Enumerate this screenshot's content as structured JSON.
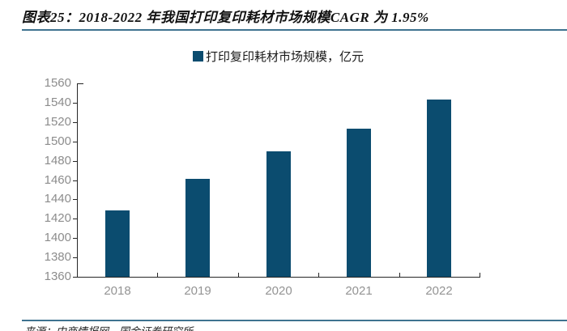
{
  "header": {
    "title": "图表25：2018-2022 年我国打印复印耗材市场规模CAGR 为 1.95%"
  },
  "legend": {
    "label": "打印复印耗材市场规模，亿元"
  },
  "footer": {
    "source": "来源：中商情报网，国金证券研究所"
  },
  "colors": {
    "bar": "#0b4c6f",
    "rule": "#3e7390",
    "axis": "#262626",
    "ytick_label": "#8c8c8c",
    "xtick_label": "#949494"
  },
  "chart_data": {
    "type": "bar",
    "title": "图表25：2018-2022 年我国打印复印耗材市场规模CAGR 为 1.95%",
    "legend": "打印复印耗材市场规模，亿元",
    "unit": "亿元",
    "categories": [
      "2018",
      "2019",
      "2020",
      "2021",
      "2022"
    ],
    "values": [
      1429,
      1461,
      1490,
      1513,
      1543
    ],
    "ylim": [
      1360,
      1560
    ],
    "ytick_step": 20,
    "ytick_labels": [
      "1360",
      "1380",
      "1400",
      "1420",
      "1440",
      "1460",
      "1480",
      "1500",
      "1520",
      "1540",
      "1560"
    ],
    "grid": false,
    "legend_position": "top-center",
    "source": "来源：中商情报网，国金证券研究所"
  }
}
